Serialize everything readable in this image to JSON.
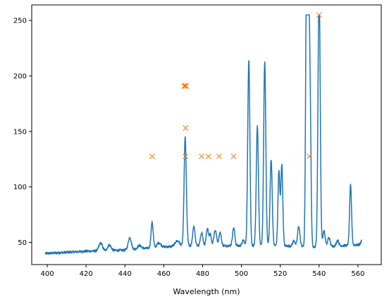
{
  "chart_data": {
    "type": "line",
    "title": "",
    "xlabel": "Wavelength (nm)",
    "ylabel": "",
    "xlim": [
      392,
      572
    ],
    "ylim": [
      30,
      264
    ],
    "xticks": [
      400,
      420,
      440,
      460,
      480,
      500,
      520,
      540,
      560
    ],
    "yticks": [
      50,
      100,
      150,
      200,
      250
    ],
    "grid": false,
    "legend": "none",
    "series": [
      {
        "kind": "line",
        "color": "#1f77b4",
        "peaks": [
          {
            "x": 427.5,
            "h": 7,
            "w": 0.9
          },
          {
            "x": 432,
            "h": 5,
            "w": 0.9
          },
          {
            "x": 442.5,
            "h": 11,
            "w": 0.8
          },
          {
            "x": 447.5,
            "h": 3,
            "w": 1.0
          },
          {
            "x": 454,
            "h": 23,
            "w": 0.55
          },
          {
            "x": 457.5,
            "h": 4,
            "w": 1.0
          },
          {
            "x": 467,
            "h": 5,
            "w": 1.2
          },
          {
            "x": 471,
            "h": 95,
            "w": 0.55
          },
          {
            "x": 471.8,
            "h": 10,
            "w": 0.5
          },
          {
            "x": 475.5,
            "h": 18,
            "w": 0.6
          },
          {
            "x": 479.5,
            "h": 12,
            "w": 0.6
          },
          {
            "x": 482.5,
            "h": 15,
            "w": 0.6
          },
          {
            "x": 484,
            "h": 10,
            "w": 0.5
          },
          {
            "x": 486.5,
            "h": 14,
            "w": 0.7
          },
          {
            "x": 489,
            "h": 12,
            "w": 0.6
          },
          {
            "x": 496,
            "h": 16,
            "w": 0.6
          },
          {
            "x": 501,
            "h": 5,
            "w": 0.6
          },
          {
            "x": 503.8,
            "h": 168,
            "w": 0.55
          },
          {
            "x": 508.2,
            "h": 108,
            "w": 0.55
          },
          {
            "x": 512,
            "h": 166,
            "w": 0.55
          },
          {
            "x": 515.3,
            "h": 78,
            "w": 0.55
          },
          {
            "x": 519.3,
            "h": 67,
            "w": 0.5
          },
          {
            "x": 520.8,
            "h": 73,
            "w": 0.5
          },
          {
            "x": 527,
            "h": 5,
            "w": 0.6
          },
          {
            "x": 529.5,
            "h": 18,
            "w": 0.6
          },
          {
            "x": 533.5,
            "h": 240,
            "w": 0.45
          },
          {
            "x": 534.5,
            "h": 240,
            "w": 0.45
          },
          {
            "x": 535.4,
            "h": 120,
            "w": 0.45
          },
          {
            "x": 540,
            "h": 240,
            "w": 0.55
          },
          {
            "x": 542.5,
            "h": 14,
            "w": 0.6
          },
          {
            "x": 545,
            "h": 8,
            "w": 0.6
          },
          {
            "x": 549.5,
            "h": 5,
            "w": 0.6
          },
          {
            "x": 556.2,
            "h": 54,
            "w": 0.5
          },
          {
            "x": 562,
            "h": 4,
            "w": 0.5
          }
        ],
        "baseline": [
          [
            399,
            40
          ],
          [
            420,
            42
          ],
          [
            440,
            43
          ],
          [
            460,
            46
          ],
          [
            480,
            47
          ],
          [
            500,
            47
          ],
          [
            520,
            47
          ],
          [
            540,
            46
          ],
          [
            562,
            48
          ]
        ],
        "x_start": 399,
        "x_end": 562,
        "y_max": 255
      },
      {
        "kind": "scatter",
        "marker": "x",
        "color": "#ff7f0e",
        "x": [
          454,
          470.5,
          471,
          471.3,
          471.5,
          471.2,
          479.5,
          483,
          488.5,
          496,
          535,
          540
        ],
        "y": [
          127.5,
          191,
          191,
          153,
          191,
          127.5,
          127.5,
          127.5,
          127.5,
          127.5,
          127.5,
          255
        ]
      }
    ]
  }
}
